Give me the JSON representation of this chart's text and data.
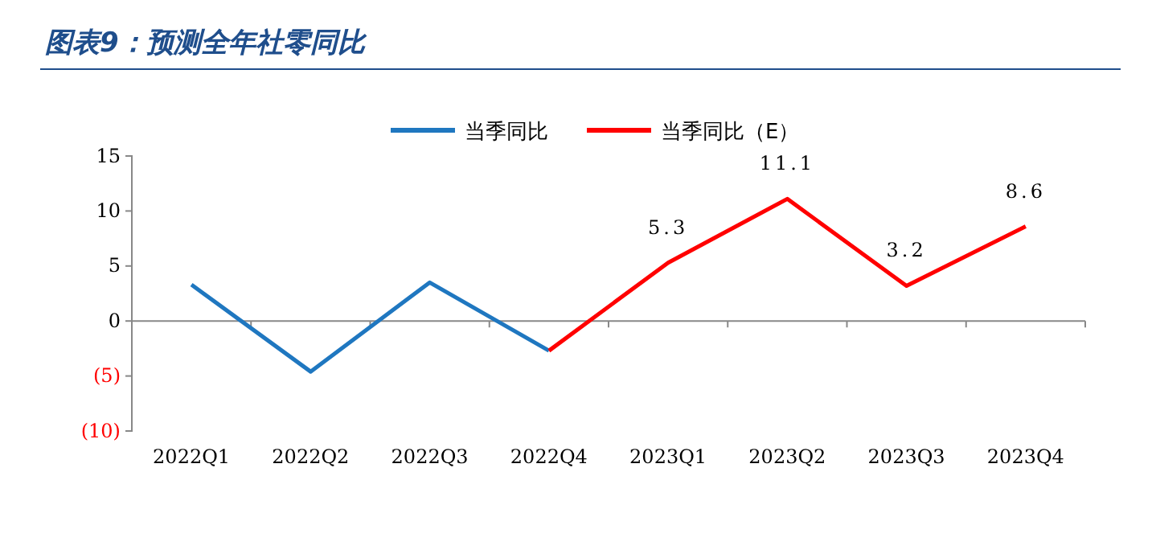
{
  "chart_data": {
    "type": "line",
    "title": "图表9：预测全年社零同比",
    "categories": [
      "2022Q1",
      "2022Q2",
      "2022Q3",
      "2022Q4",
      "2023Q1",
      "2023Q2",
      "2023Q3",
      "2023Q4"
    ],
    "series": [
      {
        "name": "当季同比",
        "color": "#1f77c0",
        "values": [
          3.3,
          -4.6,
          3.5,
          -2.7,
          null,
          null,
          null,
          null
        ]
      },
      {
        "name": "当季同比（E）",
        "color": "#ff0000",
        "values": [
          null,
          null,
          null,
          -2.7,
          5.3,
          11.1,
          3.2,
          8.6
        ],
        "value_labels": [
          null,
          null,
          null,
          null,
          "5.3",
          "11.1",
          "3.2",
          "8.6"
        ]
      }
    ],
    "ylim": [
      -10,
      15
    ],
    "yticks": [
      15,
      10,
      5,
      0,
      {
        "value": -5,
        "label": "(5)"
      },
      {
        "value": -10,
        "label": "(10)"
      }
    ],
    "legend": "top",
    "marker": "none",
    "line_style": "solid"
  }
}
